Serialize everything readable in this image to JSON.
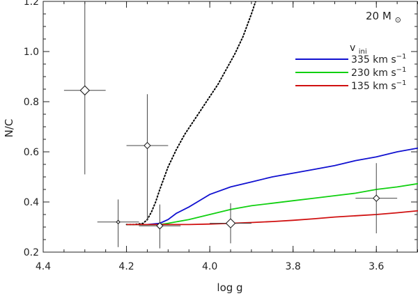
{
  "chart_data": {
    "type": "line",
    "title": "",
    "xlabel": "log g",
    "ylabel": "N/C",
    "xlim": [
      4.4,
      3.5
    ],
    "ylim": [
      0.2,
      1.2
    ],
    "x_reversed": true,
    "x_ticks": [
      4.4,
      4.2,
      4.0,
      3.8,
      3.6
    ],
    "x_tick_labels": [
      "4.4",
      "4.2",
      "4.0",
      "3.8",
      "3.6"
    ],
    "y_ticks": [
      0.2,
      0.4,
      0.6,
      0.8,
      1.0,
      1.2
    ],
    "y_tick_labels": [
      "0.2",
      "0.4",
      "0.6",
      "0.8",
      "1.0",
      "1.2"
    ],
    "grid": false,
    "annotation": {
      "text": "20 M",
      "subscript": "⊙"
    },
    "legend": {
      "placement": "top-right",
      "title": "v",
      "title_subscript": "ini",
      "entries": [
        {
          "label": "335 km s",
          "sup": "−1",
          "color": "#1010d0"
        },
        {
          "label": "230 km s",
          "sup": "−1",
          "color": "#10d010"
        },
        {
          "label": "135 km s",
          "sup": "−1",
          "color": "#d01010"
        }
      ]
    },
    "series": [
      {
        "style": "dotted",
        "color": "#000000",
        "x": [
          4.2,
          4.18,
          4.16,
          4.15,
          4.14,
          4.13,
          4.12,
          4.1,
          4.08,
          4.06,
          4.04,
          4.02,
          4.0,
          3.98,
          3.96,
          3.94,
          3.92,
          3.9,
          3.89
        ],
        "y": [
          0.31,
          0.31,
          0.315,
          0.33,
          0.36,
          0.4,
          0.45,
          0.54,
          0.61,
          0.67,
          0.72,
          0.77,
          0.82,
          0.87,
          0.93,
          0.99,
          1.06,
          1.15,
          1.2
        ]
      },
      {
        "style": "solid",
        "color": "#1010d0",
        "x": [
          4.2,
          4.15,
          4.12,
          4.1,
          4.08,
          4.05,
          4.02,
          4.0,
          3.95,
          3.9,
          3.85,
          3.8,
          3.75,
          3.7,
          3.65,
          3.6,
          3.55,
          3.5
        ],
        "y": [
          0.31,
          0.31,
          0.315,
          0.33,
          0.355,
          0.38,
          0.41,
          0.43,
          0.46,
          0.48,
          0.5,
          0.515,
          0.53,
          0.545,
          0.565,
          0.58,
          0.6,
          0.615
        ]
      },
      {
        "style": "solid",
        "color": "#10d010",
        "x": [
          4.2,
          4.15,
          4.12,
          4.1,
          4.05,
          4.0,
          3.95,
          3.9,
          3.85,
          3.8,
          3.75,
          3.7,
          3.65,
          3.6,
          3.55,
          3.5
        ],
        "y": [
          0.31,
          0.31,
          0.31,
          0.315,
          0.33,
          0.35,
          0.37,
          0.385,
          0.395,
          0.405,
          0.415,
          0.425,
          0.435,
          0.45,
          0.46,
          0.473
        ]
      },
      {
        "style": "solid",
        "color": "#d01010",
        "x": [
          4.2,
          4.15,
          4.1,
          4.05,
          4.0,
          3.95,
          3.9,
          3.85,
          3.8,
          3.75,
          3.7,
          3.65,
          3.6,
          3.55,
          3.5
        ],
        "y": [
          0.31,
          0.31,
          0.31,
          0.31,
          0.312,
          0.315,
          0.318,
          0.322,
          0.327,
          0.333,
          0.34,
          0.345,
          0.35,
          0.357,
          0.365
        ]
      }
    ],
    "observations": [
      {
        "x": 4.3,
        "y": 0.845,
        "xerr": 0.05,
        "yerr_low": 0.335,
        "yerr_high": 0.355,
        "size": "large"
      },
      {
        "x": 4.15,
        "y": 0.625,
        "xerr": 0.05,
        "yerr_low": 0.3,
        "yerr_high": 0.205,
        "size": "small"
      },
      {
        "x": 4.22,
        "y": 0.32,
        "xerr": 0.05,
        "yerr_low": 0.1,
        "yerr_high": 0.09,
        "size": "tiny"
      },
      {
        "x": 4.12,
        "y": 0.305,
        "xerr": 0.05,
        "yerr_low": 0.09,
        "yerr_high": 0.085,
        "size": "small"
      },
      {
        "x": 3.95,
        "y": 0.315,
        "xerr": 0.05,
        "yerr_low": 0.08,
        "yerr_high": 0.08,
        "size": "large"
      },
      {
        "x": 3.6,
        "y": 0.415,
        "xerr": 0.05,
        "yerr_low": 0.14,
        "yerr_high": 0.14,
        "size": "small"
      }
    ]
  }
}
